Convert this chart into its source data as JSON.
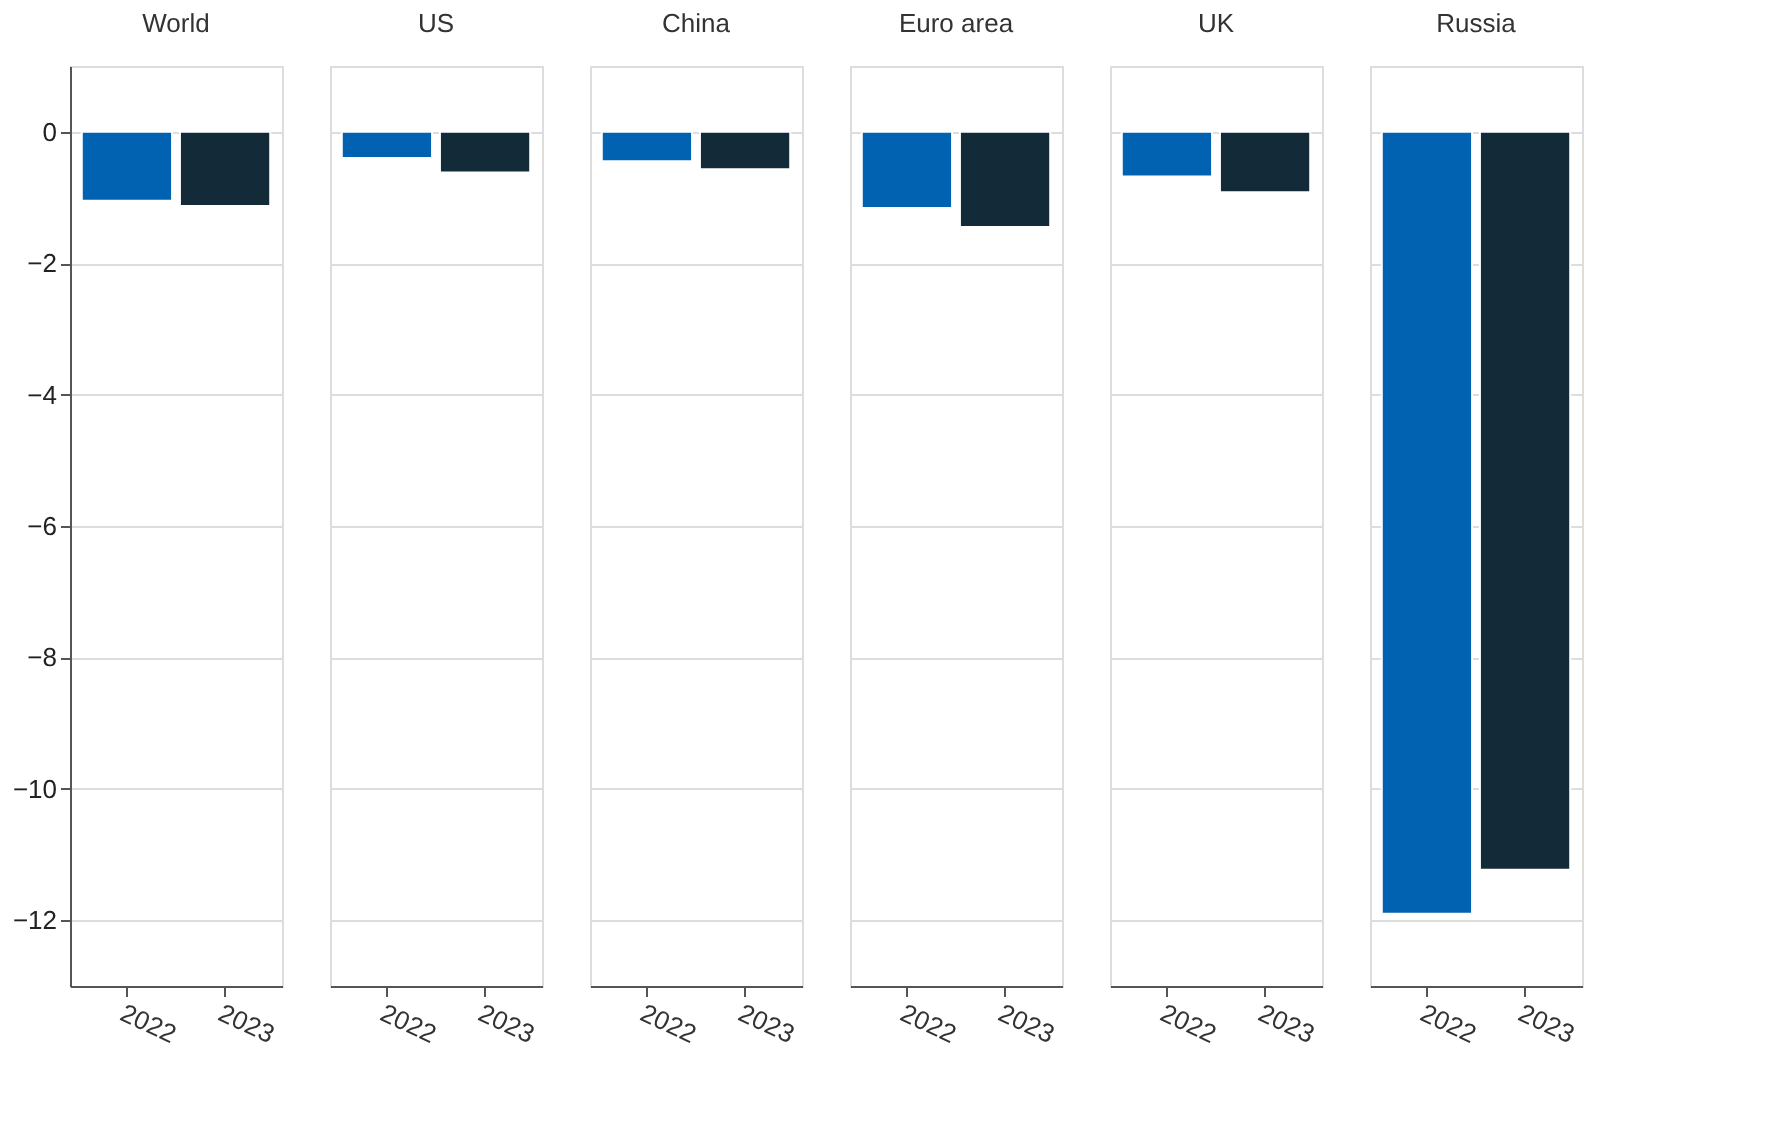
{
  "chart_data": [
    {
      "type": "bar",
      "title": "World",
      "categories": [
        "2022",
        "2023"
      ],
      "values": [
        -1.05,
        -1.13
      ],
      "colors": [
        "#0062b1",
        "#132a38"
      ],
      "ylim": [
        -13,
        1
      ],
      "yticks": [
        0,
        -2,
        -4,
        -6,
        -8,
        -10,
        -12
      ],
      "grid": "y"
    },
    {
      "type": "bar",
      "title": "US",
      "categories": [
        "2022",
        "2023"
      ],
      "values": [
        -0.4,
        -0.62
      ],
      "colors": [
        "#0062b1",
        "#132a38"
      ],
      "ylim": [
        -13,
        1
      ],
      "yticks": [
        0,
        -2,
        -4,
        -6,
        -8,
        -10,
        -12
      ],
      "grid": "y",
      "tick_labels": "x"
    },
    {
      "type": "bar",
      "title": "China",
      "categories": [
        "2022",
        "2023"
      ],
      "values": [
        -0.45,
        -0.57
      ],
      "colors": [
        "#0062b1",
        "#132a38"
      ],
      "ylim": [
        -13,
        1
      ],
      "yticks": [
        0,
        -2,
        -4,
        -6,
        -8,
        -10,
        -12
      ],
      "grid": "y",
      "tick_labels": "x"
    },
    {
      "type": "bar",
      "title": "Euro area",
      "categories": [
        "2022",
        "2023"
      ],
      "values": [
        -1.16,
        -1.45
      ],
      "colors": [
        "#0062b1",
        "#132a38"
      ],
      "ylim": [
        -13,
        1
      ],
      "yticks": [
        0,
        -2,
        -4,
        -6,
        -8,
        -10,
        -12
      ],
      "grid": "y",
      "tick_labels": "x"
    },
    {
      "type": "bar",
      "title": "UK",
      "categories": [
        "2022",
        "2023"
      ],
      "values": [
        -0.68,
        -0.92
      ],
      "colors": [
        "#0062b1",
        "#132a38"
      ],
      "ylim": [
        -13,
        1
      ],
      "yticks": [
        0,
        -2,
        -4,
        -6,
        -8,
        -10,
        -12
      ],
      "grid": "y",
      "tick_labels": "x"
    },
    {
      "type": "bar",
      "title": "Russia",
      "categories": [
        "2022",
        "2023"
      ],
      "values": [
        -11.9,
        -11.23
      ],
      "colors": [
        "#0062b1",
        "#132a38"
      ],
      "ylim": [
        -13,
        1
      ],
      "yticks": [
        0,
        -2,
        -4,
        -6,
        -8,
        -10,
        -12
      ],
      "grid": "y",
      "tick_labels": "x"
    }
  ]
}
